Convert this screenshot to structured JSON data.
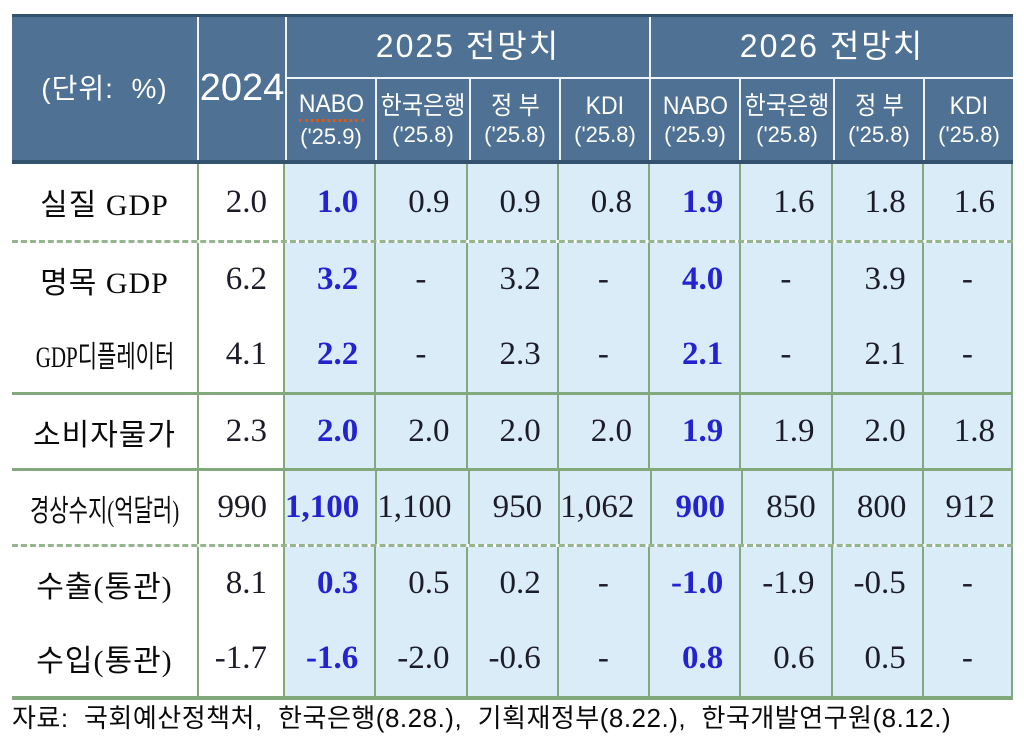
{
  "table": {
    "unit_label": "(단위:  %)",
    "base_year_label": "2024",
    "group_headers": [
      {
        "label": "2025 전망치"
      },
      {
        "label": "2026 전망치"
      }
    ],
    "sources": [
      {
        "name": "NABO",
        "date": "('25.9)"
      },
      {
        "name": "한국은행",
        "date": "('25.8)"
      },
      {
        "name": "정 부",
        "date": "('25.8)"
      },
      {
        "name": "KDI",
        "date": "('25.8)"
      },
      {
        "name": "NABO",
        "date": "('25.9)"
      },
      {
        "name": "한국은행",
        "date": "('25.8)"
      },
      {
        "name": "정 부",
        "date": "('25.8)"
      },
      {
        "name": "KDI",
        "date": "('25.8)"
      }
    ],
    "rows": [
      {
        "label": "실질 GDP",
        "y2024": "2.0",
        "values": [
          "1.0",
          "0.9",
          "0.9",
          "0.8",
          "1.9",
          "1.6",
          "1.8",
          "1.6"
        ]
      },
      {
        "label": "명목 GDP",
        "y2024": "6.2",
        "values": [
          "3.2",
          "-",
          "3.2",
          "-",
          "4.0",
          "-",
          "3.9",
          "-"
        ]
      },
      {
        "label": "GDP디플레이터",
        "y2024": "4.1",
        "values": [
          "2.2",
          "-",
          "2.3",
          "-",
          "2.1",
          "-",
          "2.1",
          "-"
        ]
      },
      {
        "label": "소비자물가",
        "y2024": "2.3",
        "values": [
          "2.0",
          "2.0",
          "2.0",
          "2.0",
          "1.9",
          "1.9",
          "2.0",
          "1.8"
        ]
      },
      {
        "label": "경상수지(억달러)",
        "y2024": "990",
        "values": [
          "1,100",
          "1,100",
          "950",
          "1,062",
          "900",
          "850",
          "800",
          "912"
        ]
      },
      {
        "label": "수출(통관)",
        "y2024": "8.1",
        "values": [
          "0.3",
          "0.5",
          "0.2",
          "-",
          "-1.0",
          "-1.9",
          "-0.5",
          "-"
        ]
      },
      {
        "label": "수입(통관)",
        "y2024": "-1.7",
        "values": [
          "-1.6",
          "-2.0",
          "-0.6",
          "-",
          "0.8",
          "0.6",
          "0.5",
          "-"
        ]
      }
    ]
  },
  "footer": {
    "source_note": "자료:  국회예산정책처,  한국은행(8.28.),  기획재정부(8.22.),  한국개발연구원(8.12.)"
  },
  "colors": {
    "header-bg": "#4f7294",
    "header-border": "#33526f",
    "forecast-bg": "#daecf7",
    "grid-green": "#84a87e",
    "nabo-blue": "#2323cf"
  }
}
